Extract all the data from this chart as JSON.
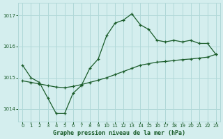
{
  "bg_color": "#d4eeee",
  "grid_color": "#b0d8d8",
  "line_color": "#1a5c2a",
  "xlabel": "Graphe pression niveau de la mer (hPa)",
  "xlabel_color": "#1a5c2a",
  "tick_label_color": "#1a5c2a",
  "ylim": [
    1013.6,
    1017.4
  ],
  "xlim": [
    -0.5,
    23.5
  ],
  "yticks": [
    1014,
    1015,
    1016,
    1017
  ],
  "xticks": [
    0,
    1,
    2,
    3,
    4,
    5,
    6,
    7,
    8,
    9,
    10,
    11,
    12,
    13,
    14,
    15,
    16,
    17,
    18,
    19,
    20,
    21,
    22,
    23
  ],
  "line1_x": [
    0,
    1,
    2,
    3,
    4,
    5,
    6,
    7,
    8,
    9,
    10,
    11,
    12,
    13,
    14,
    15,
    16,
    17,
    18,
    19,
    20,
    21,
    22,
    23
  ],
  "line1_y": [
    1015.4,
    1015.0,
    1014.85,
    1014.35,
    1013.85,
    1013.85,
    1014.5,
    1014.75,
    1015.3,
    1015.6,
    1016.35,
    1016.75,
    1016.85,
    1017.05,
    1016.7,
    1016.55,
    1016.2,
    1016.15,
    1016.2,
    1016.15,
    1016.2,
    1016.1,
    1016.1,
    1015.75
  ],
  "line2_x": [
    0,
    1,
    2,
    3,
    4,
    5,
    6,
    7,
    8,
    9,
    10,
    11,
    12,
    13,
    14,
    15,
    16,
    17,
    18,
    19,
    20,
    21,
    22,
    23
  ],
  "line2_y": [
    1014.9,
    1014.85,
    1014.8,
    1014.75,
    1014.7,
    1014.68,
    1014.72,
    1014.78,
    1014.85,
    1014.92,
    1015.0,
    1015.1,
    1015.2,
    1015.3,
    1015.4,
    1015.45,
    1015.5,
    1015.52,
    1015.55,
    1015.58,
    1015.6,
    1015.63,
    1015.66,
    1015.75
  ]
}
